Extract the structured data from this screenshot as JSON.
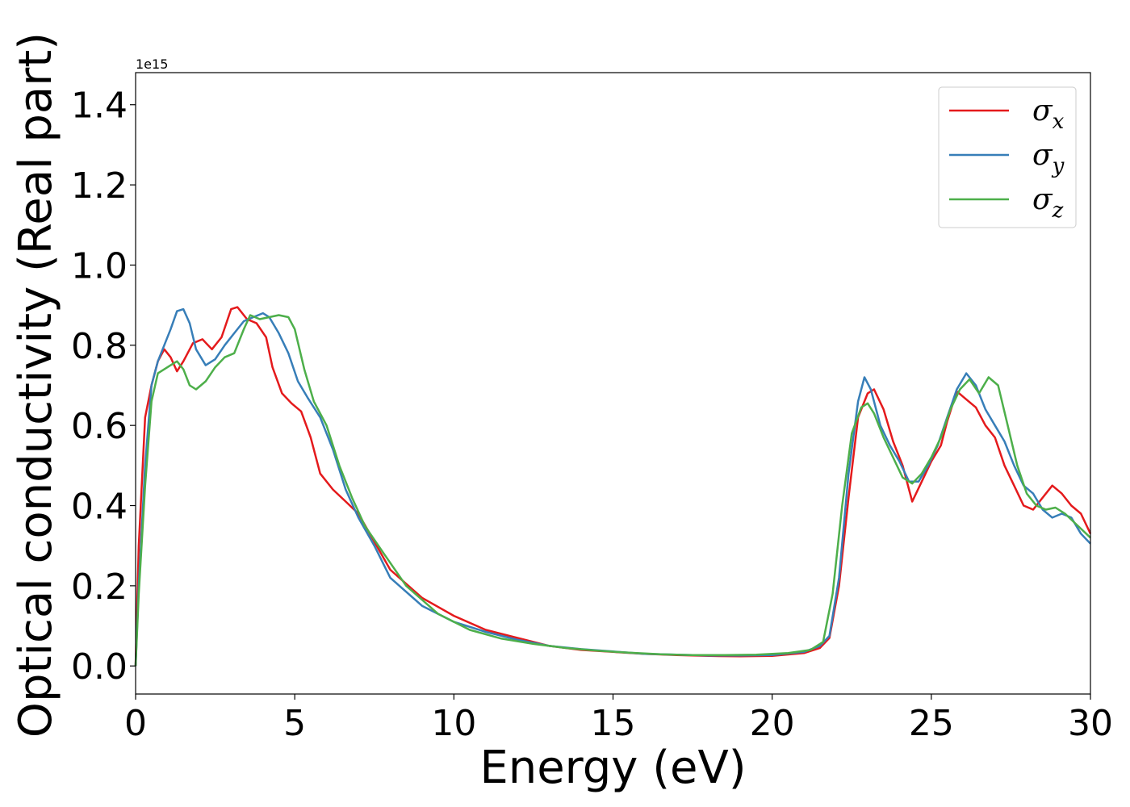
{
  "chart_data": {
    "type": "line",
    "xlabel": "Energy (eV)",
    "ylabel": "Optical conductivity (Real part)",
    "y_offset_label": "1e15",
    "xlim": [
      0,
      30
    ],
    "ylim": [
      -0.07,
      1.48
    ],
    "xticks": [
      0,
      5,
      10,
      15,
      20,
      25,
      30
    ],
    "xtick_labels": [
      "0",
      "5",
      "10",
      "15",
      "20",
      "25",
      "30"
    ],
    "yticks": [
      0.0,
      0.2,
      0.4,
      0.6,
      0.8,
      1.0,
      1.2,
      1.4
    ],
    "ytick_labels": [
      "0.0",
      "0.2",
      "0.4",
      "0.6",
      "0.8",
      "1.0",
      "1.2",
      "1.4"
    ],
    "grid": false,
    "legend_position": "top-right",
    "series": [
      {
        "name": "σx",
        "base": "σ",
        "sub": "x",
        "color": "#e41a1c",
        "x": [
          0,
          0.1,
          0.3,
          0.5,
          0.7,
          0.9,
          1.1,
          1.3,
          1.5,
          1.8,
          2.1,
          2.4,
          2.7,
          3.0,
          3.2,
          3.5,
          3.8,
          4.1,
          4.3,
          4.6,
          4.9,
          5.2,
          5.5,
          5.8,
          6.2,
          6.6,
          7.0,
          7.5,
          8.0,
          9.0,
          10.0,
          11.0,
          12.0,
          13.0,
          14.0,
          15.0,
          16.0,
          17.0,
          18.0,
          19.0,
          20.0,
          21.0,
          21.5,
          21.8,
          22.1,
          22.4,
          22.7,
          23.0,
          23.2,
          23.5,
          23.8,
          24.1,
          24.4,
          24.7,
          25.0,
          25.3,
          25.5,
          25.8,
          26.1,
          26.4,
          26.7,
          27.0,
          27.3,
          27.6,
          27.9,
          28.2,
          28.5,
          28.8,
          29.1,
          29.4,
          29.7,
          30.0
        ],
        "y": [
          0.0,
          0.3,
          0.62,
          0.7,
          0.76,
          0.79,
          0.77,
          0.735,
          0.76,
          0.805,
          0.815,
          0.79,
          0.82,
          0.89,
          0.895,
          0.865,
          0.855,
          0.82,
          0.745,
          0.68,
          0.655,
          0.635,
          0.57,
          0.48,
          0.44,
          0.41,
          0.38,
          0.31,
          0.24,
          0.17,
          0.125,
          0.09,
          0.07,
          0.05,
          0.04,
          0.035,
          0.03,
          0.027,
          0.025,
          0.024,
          0.025,
          0.032,
          0.045,
          0.07,
          0.2,
          0.42,
          0.62,
          0.68,
          0.69,
          0.64,
          0.56,
          0.5,
          0.41,
          0.46,
          0.51,
          0.55,
          0.61,
          0.685,
          0.665,
          0.645,
          0.6,
          0.57,
          0.5,
          0.45,
          0.4,
          0.39,
          0.42,
          0.45,
          0.43,
          0.4,
          0.38,
          0.33
        ]
      },
      {
        "name": "σy",
        "base": "σ",
        "sub": "y",
        "color": "#377eb8",
        "x": [
          0,
          0.1,
          0.3,
          0.5,
          0.7,
          0.9,
          1.1,
          1.3,
          1.5,
          1.7,
          1.9,
          2.2,
          2.5,
          2.8,
          3.1,
          3.4,
          3.7,
          4.0,
          4.2,
          4.5,
          4.8,
          5.1,
          5.4,
          5.8,
          6.2,
          6.6,
          7.0,
          7.5,
          8.0,
          9.0,
          10.0,
          11.0,
          12.0,
          13.0,
          14.0,
          15.0,
          16.0,
          17.0,
          18.0,
          19.0,
          20.0,
          21.0,
          21.5,
          21.8,
          22.1,
          22.4,
          22.7,
          22.9,
          23.1,
          23.4,
          23.7,
          24.0,
          24.3,
          24.6,
          24.9,
          25.2,
          25.5,
          25.8,
          26.1,
          26.4,
          26.7,
          27.0,
          27.3,
          27.6,
          27.9,
          28.2,
          28.5,
          28.8,
          29.1,
          29.4,
          29.7,
          30.0
        ],
        "y": [
          0.0,
          0.2,
          0.5,
          0.7,
          0.76,
          0.8,
          0.84,
          0.885,
          0.89,
          0.855,
          0.79,
          0.75,
          0.765,
          0.8,
          0.83,
          0.86,
          0.87,
          0.88,
          0.87,
          0.83,
          0.78,
          0.71,
          0.67,
          0.62,
          0.54,
          0.44,
          0.37,
          0.3,
          0.22,
          0.15,
          0.11,
          0.085,
          0.065,
          0.05,
          0.042,
          0.036,
          0.03,
          0.028,
          0.026,
          0.026,
          0.027,
          0.035,
          0.05,
          0.075,
          0.22,
          0.48,
          0.66,
          0.72,
          0.69,
          0.6,
          0.55,
          0.51,
          0.46,
          0.46,
          0.5,
          0.55,
          0.62,
          0.69,
          0.73,
          0.7,
          0.64,
          0.6,
          0.56,
          0.5,
          0.45,
          0.43,
          0.39,
          0.37,
          0.38,
          0.37,
          0.33,
          0.305
        ]
      },
      {
        "name": "σz",
        "base": "σ",
        "sub": "z",
        "color": "#4daf4a",
        "x": [
          0,
          0.1,
          0.3,
          0.5,
          0.7,
          0.9,
          1.1,
          1.3,
          1.5,
          1.7,
          1.9,
          2.2,
          2.5,
          2.8,
          3.1,
          3.4,
          3.6,
          3.9,
          4.2,
          4.5,
          4.8,
          5.0,
          5.3,
          5.6,
          6.0,
          6.4,
          6.8,
          7.2,
          7.8,
          8.5,
          9.5,
          10.5,
          11.5,
          12.5,
          13.5,
          14.5,
          15.5,
          16.5,
          17.5,
          18.5,
          19.5,
          20.5,
          21.2,
          21.6,
          21.9,
          22.2,
          22.5,
          22.8,
          23.0,
          23.2,
          23.5,
          23.8,
          24.1,
          24.4,
          24.7,
          25.0,
          25.3,
          25.6,
          25.9,
          26.2,
          26.5,
          26.8,
          27.1,
          27.4,
          27.7,
          28.0,
          28.3,
          28.6,
          28.9,
          29.2,
          29.6,
          30.0
        ],
        "y": [
          0.0,
          0.18,
          0.45,
          0.66,
          0.73,
          0.74,
          0.75,
          0.76,
          0.74,
          0.7,
          0.69,
          0.71,
          0.745,
          0.77,
          0.78,
          0.84,
          0.875,
          0.865,
          0.87,
          0.875,
          0.87,
          0.84,
          0.74,
          0.66,
          0.6,
          0.5,
          0.42,
          0.35,
          0.28,
          0.2,
          0.13,
          0.09,
          0.068,
          0.055,
          0.045,
          0.038,
          0.033,
          0.029,
          0.027,
          0.027,
          0.028,
          0.032,
          0.04,
          0.06,
          0.18,
          0.4,
          0.58,
          0.645,
          0.655,
          0.63,
          0.57,
          0.52,
          0.47,
          0.455,
          0.48,
          0.52,
          0.57,
          0.64,
          0.69,
          0.715,
          0.68,
          0.72,
          0.7,
          0.6,
          0.5,
          0.43,
          0.4,
          0.39,
          0.395,
          0.38,
          0.35,
          0.32
        ]
      }
    ]
  }
}
